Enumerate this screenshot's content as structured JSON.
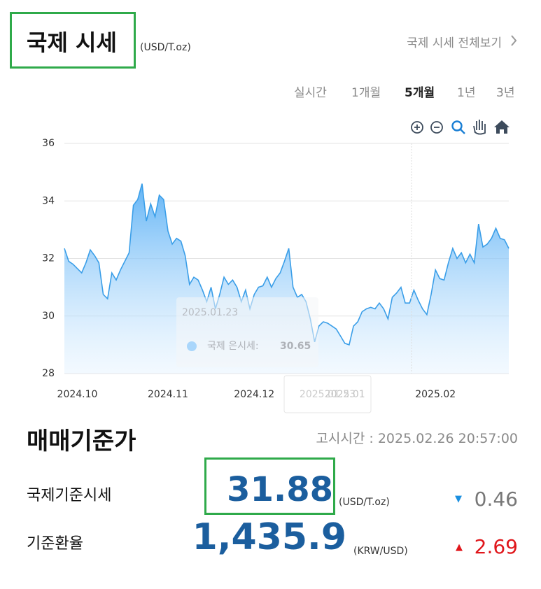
{
  "header": {
    "title": "국제 시세",
    "unit": "(USD/T.oz)",
    "link": "국제 시세 전체보기"
  },
  "tabs": [
    "실시간",
    "1개월",
    "5개월",
    "1년",
    "3년"
  ],
  "active_tab": 2,
  "chart_data": {
    "type": "area",
    "color": "#3a9ee8",
    "ylim": [
      28,
      36
    ],
    "yticks": [
      28,
      30,
      32,
      34,
      36
    ],
    "grid": true,
    "categories": [
      null,
      null,
      null,
      "2024.10",
      null,
      null,
      null,
      null,
      null,
      null,
      null,
      null,
      null,
      null,
      null,
      null,
      null,
      null,
      null,
      null,
      null,
      null,
      null,
      null,
      "2024.11",
      null,
      null,
      null,
      null,
      null,
      null,
      null,
      null,
      null,
      null,
      null,
      null,
      null,
      null,
      null,
      null,
      null,
      null,
      null,
      "2024.12",
      null,
      null,
      null,
      null,
      null,
      null,
      null,
      null,
      null,
      null,
      null,
      null,
      null,
      null,
      null,
      null,
      null,
      null,
      null,
      null,
      "2025.01",
      null,
      null,
      null,
      null,
      null,
      null,
      null,
      null,
      null,
      null,
      null,
      null,
      null,
      null,
      null,
      null,
      null,
      null,
      null,
      null,
      "2025.02",
      null,
      null,
      null,
      null,
      null,
      null,
      null,
      null,
      null,
      null,
      null,
      null,
      null,
      null,
      null,
      null,
      null
    ],
    "values": [
      32.35,
      31.9,
      31.8,
      31.65,
      31.5,
      31.85,
      32.3,
      32.1,
      31.85,
      30.75,
      30.6,
      31.5,
      31.25,
      31.6,
      31.9,
      32.2,
      33.85,
      34.05,
      34.6,
      33.3,
      33.9,
      33.45,
      34.2,
      34.05,
      32.95,
      32.5,
      32.7,
      32.6,
      32.1,
      31.1,
      31.35,
      31.25,
      30.9,
      30.5,
      31.0,
      30.25,
      30.75,
      31.35,
      31.1,
      31.25,
      31.0,
      30.5,
      30.9,
      30.25,
      30.75,
      31.0,
      31.05,
      31.35,
      31.0,
      31.3,
      31.5,
      31.9,
      32.35,
      31.0,
      30.65,
      30.75,
      30.5,
      29.9,
      29.1,
      29.65,
      29.8,
      29.75,
      29.65,
      29.55,
      29.3,
      29.05,
      29.0,
      29.65,
      29.8,
      30.15,
      30.25,
      30.3,
      30.25,
      30.45,
      30.25,
      29.9,
      30.65,
      30.8,
      31.0,
      30.45,
      30.45,
      30.9,
      30.55,
      30.25,
      30.05,
      30.75,
      31.6,
      31.3,
      31.25,
      31.85,
      32.35,
      32.0,
      32.2,
      31.85,
      32.15,
      31.85,
      33.2,
      32.4,
      32.5,
      32.7,
      33.05,
      32.7,
      32.65,
      32.35
    ],
    "tooltip": {
      "date": "2025.01.23",
      "label": "국제 은시세:",
      "value": 30.65
    },
    "crosshair_label": "2025.01.23"
  },
  "section": {
    "title": "매매기준가",
    "time": "고시시간 : 2025.02.26 20:57:00"
  },
  "rows": [
    {
      "label": "국제기준시세",
      "value": "31.88",
      "unit": "(USD/T.oz)",
      "direction": "▼",
      "change": "0.46"
    },
    {
      "label": "기준환율",
      "value": "1,435.9",
      "unit": "(KRW/USD)",
      "direction": "▲",
      "change": "2.69"
    }
  ]
}
